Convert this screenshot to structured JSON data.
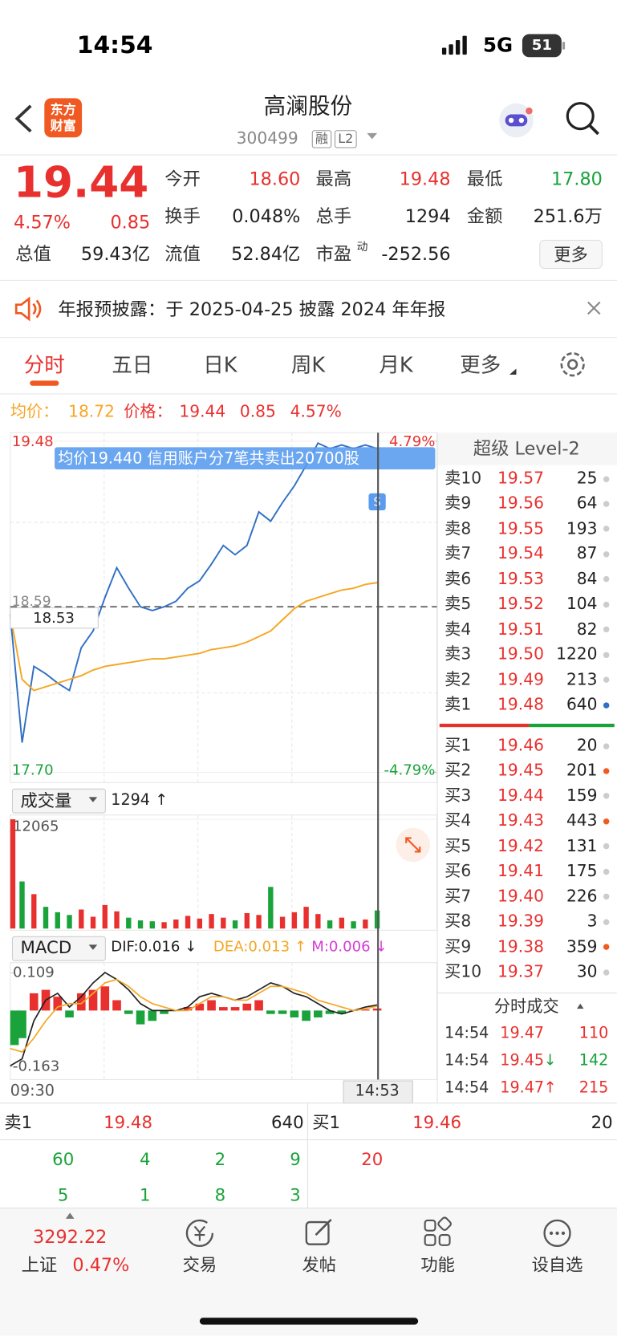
{
  "status_bar": {
    "time": "14:54",
    "network": "5G",
    "battery": "51"
  },
  "header": {
    "logo": [
      "东方",
      "财富"
    ],
    "title": "高澜股份",
    "code": "300499",
    "badges": [
      "融",
      "L2"
    ]
  },
  "quote": {
    "price": "19.44",
    "change_pct": "4.57%",
    "change": "0.85",
    "fields": [
      {
        "label": "今开",
        "value": "18.60",
        "color": "#e8312f"
      },
      {
        "label": "最高",
        "value": "19.48",
        "color": "#e8312f"
      },
      {
        "label": "最低",
        "value": "17.80",
        "color": "#1aa33a"
      },
      {
        "label": "换手",
        "value": "0.048%",
        "color": "#222222"
      },
      {
        "label": "总手",
        "value": "1294",
        "color": "#222222"
      },
      {
        "label": "金额",
        "value": "251.6万",
        "color": "#222222"
      },
      {
        "label": "总值",
        "value": "59.43亿",
        "color": "#222222"
      },
      {
        "label": "流值",
        "value": "52.84亿",
        "color": "#222222"
      },
      {
        "label": "市盈",
        "sup": "动",
        "value": "-252.56",
        "color": "#222222"
      }
    ],
    "more_button": "更多"
  },
  "notice": "年报预披露：于 2025-04-25 披露 2024 年年报",
  "tabs": [
    "分时",
    "五日",
    "日K",
    "周K",
    "月K",
    "更多"
  ],
  "price_chart": {
    "type": "line",
    "info": {
      "avg_label": "均价：",
      "avg": "18.72",
      "price_label": "价格：",
      "price": "19.44",
      "change": "0.85",
      "change_pct": "4.57%"
    },
    "ylim": [
      17.7,
      19.48
    ],
    "yticks": [
      {
        "value": 19.48,
        "label": "19.48"
      },
      {
        "value": 17.7,
        "label": "17.70"
      }
    ],
    "y2lim": [
      -4.79,
      4.79
    ],
    "y2ticks": [
      {
        "value": 4.79,
        "label": "4.79%"
      },
      {
        "value": -4.79,
        "label": "-4.79%"
      }
    ],
    "prev_close": {
      "value": 18.59,
      "label": "18.59"
    },
    "crosshair": {
      "value": 18.53,
      "label": "18.53",
      "time": "14:53"
    },
    "tooltip": "均价19.440  信用账户分7笔共卖出20700股",
    "marker": "S",
    "x_start_label": "09:30",
    "series": [
      {
        "color": "#2f6fc4",
        "values": [
          18.55,
          17.86,
          18.27,
          18.23,
          18.18,
          18.14,
          18.37,
          18.46,
          18.64,
          18.8,
          18.69,
          18.59,
          18.57,
          18.59,
          18.62,
          18.69,
          18.73,
          18.82,
          18.92,
          18.87,
          18.92,
          19.1,
          19.05,
          19.15,
          19.24,
          19.35,
          19.47,
          19.44,
          19.46,
          19.44,
          19.46,
          19.44
        ]
      },
      {
        "color": "#f5a623",
        "values": [
          18.55,
          18.2,
          18.14,
          18.16,
          18.18,
          18.2,
          18.22,
          18.25,
          18.27,
          18.28,
          18.29,
          18.3,
          18.31,
          18.31,
          18.32,
          18.33,
          18.34,
          18.36,
          18.37,
          18.38,
          18.4,
          18.43,
          18.46,
          18.52,
          18.58,
          18.62,
          18.64,
          18.66,
          18.68,
          18.69,
          18.71,
          18.72
        ]
      }
    ]
  },
  "volume_chart": {
    "type": "bar",
    "selector": "成交量",
    "current": "1294 ↑",
    "ylim": [
      0,
      12065
    ],
    "yticks": [
      12065
    ],
    "up_color": "#e8312f",
    "down_color": "#1aa33a",
    "values": [
      12065,
      5200,
      3800,
      2400,
      1800,
      1500,
      2100,
      1300,
      2600,
      1900,
      1200,
      900,
      800,
      700,
      1000,
      1400,
      1100,
      1600,
      1200,
      900,
      1700,
      1500,
      4600,
      1300,
      1800,
      2400,
      1600,
      900,
      1200,
      800,
      1000,
      2000
    ]
  },
  "macd_chart": {
    "type": "macd",
    "selector": "MACD",
    "indicators": [
      {
        "label": "DIF:0.016 ↓",
        "color": "#222222"
      },
      {
        "label": "DEA:0.013 ↑",
        "color": "#f5a623"
      },
      {
        "label": "M:0.006 ↓",
        "color": "#d63bd6"
      }
    ],
    "ylim": [
      -0.163,
      0.109
    ],
    "yticks": [
      0.109,
      -0.163
    ],
    "histogram": {
      "up_color": "#e8312f",
      "down_color": "#1aa33a",
      "values": [
        -0.1,
        -0.08,
        0.05,
        0.06,
        0.04,
        -0.02,
        0.05,
        0.06,
        0.07,
        0.03,
        -0.01,
        -0.04,
        -0.03,
        -0.01,
        0.0,
        0.01,
        0.02,
        0.03,
        0.01,
        0.01,
        0.02,
        0.03,
        -0.01,
        -0.01,
        -0.02,
        -0.03,
        -0.02,
        -0.01,
        -0.01,
        0.0,
        0.003,
        0.006
      ]
    },
    "series": [
      {
        "color": "#222222",
        "values": [
          -0.16,
          -0.14,
          -0.03,
          0.03,
          0.05,
          0.01,
          0.04,
          0.08,
          0.11,
          0.09,
          0.06,
          0.02,
          0.0,
          0.0,
          0.0,
          0.01,
          0.04,
          0.05,
          0.04,
          0.03,
          0.04,
          0.06,
          0.08,
          0.07,
          0.05,
          0.04,
          0.02,
          0.0,
          -0.01,
          0.0,
          0.01,
          0.016
        ]
      },
      {
        "color": "#f5a623",
        "values": [
          -0.11,
          -0.12,
          -0.08,
          -0.03,
          0.01,
          0.02,
          0.02,
          0.05,
          0.08,
          0.09,
          0.07,
          0.04,
          0.02,
          0.01,
          0.0,
          0.0,
          0.02,
          0.04,
          0.04,
          0.03,
          0.03,
          0.05,
          0.07,
          0.07,
          0.06,
          0.05,
          0.03,
          0.02,
          0.01,
          0.0,
          0.005,
          0.013
        ]
      }
    ]
  },
  "order_book": {
    "title": "超级 Level-2",
    "asks": [
      {
        "label": "卖10",
        "price": "19.57",
        "volume": "25",
        "dot": "#cccccc"
      },
      {
        "label": "卖9",
        "price": "19.56",
        "volume": "64",
        "dot": "#cccccc"
      },
      {
        "label": "卖8",
        "price": "19.55",
        "volume": "193",
        "dot": "#cccccc"
      },
      {
        "label": "卖7",
        "price": "19.54",
        "volume": "87",
        "dot": "#cccccc"
      },
      {
        "label": "卖6",
        "price": "19.53",
        "volume": "84",
        "dot": "#cccccc"
      },
      {
        "label": "卖5",
        "price": "19.52",
        "volume": "104",
        "dot": "#cccccc"
      },
      {
        "label": "卖4",
        "price": "19.51",
        "volume": "82",
        "dot": "#cccccc"
      },
      {
        "label": "卖3",
        "price": "19.50",
        "volume": "1220",
        "dot": "#cccccc"
      },
      {
        "label": "卖2",
        "price": "19.49",
        "volume": "213",
        "dot": "#cccccc"
      },
      {
        "label": "卖1",
        "price": "19.48",
        "volume": "640",
        "dot": "#2f6fc4"
      }
    ],
    "bids": [
      {
        "label": "买1",
        "price": "19.46",
        "volume": "20",
        "dot": "#cccccc"
      },
      {
        "label": "买2",
        "price": "19.45",
        "volume": "201",
        "dot": "#f05a22"
      },
      {
        "label": "买3",
        "price": "19.44",
        "volume": "159",
        "dot": "#cccccc"
      },
      {
        "label": "买4",
        "price": "19.43",
        "volume": "443",
        "dot": "#f05a22"
      },
      {
        "label": "买5",
        "price": "19.42",
        "volume": "131",
        "dot": "#cccccc"
      },
      {
        "label": "买6",
        "price": "19.41",
        "volume": "175",
        "dot": "#cccccc"
      },
      {
        "label": "买7",
        "price": "19.40",
        "volume": "226",
        "dot": "#cccccc"
      },
      {
        "label": "买8",
        "price": "19.39",
        "volume": "3",
        "dot": "#cccccc"
      },
      {
        "label": "买9",
        "price": "19.38",
        "volume": "359",
        "dot": "#f05a22"
      },
      {
        "label": "买10",
        "price": "19.37",
        "volume": "30",
        "dot": "#cccccc"
      }
    ]
  },
  "trades": {
    "title": "分时成交",
    "rows": [
      {
        "time": "14:54",
        "price": "19.47",
        "volume": "110",
        "volume_color": "#e8312f"
      },
      {
        "time": "14:54",
        "price": "19.45",
        "arrow": "↓",
        "arrow_color": "#1aa33a",
        "volume": "142",
        "volume_color": "#1aa33a"
      },
      {
        "time": "14:54",
        "price": "19.47",
        "arrow": "↑",
        "arrow_color": "#e8312f",
        "volume": "215",
        "volume_color": "#e8312f"
      }
    ]
  },
  "summary": {
    "sell": {
      "label": "卖1",
      "price": "19.48",
      "volume": "640"
    },
    "buy": {
      "label": "买1",
      "price": "19.46",
      "volume": "20"
    },
    "sell_queue": [
      "60",
      "4",
      "2",
      "9",
      "5",
      "1",
      "8",
      "3"
    ],
    "buy_queue": [
      "20"
    ]
  },
  "bottom_nav": {
    "index_value": "3292.22",
    "index_name": "上证",
    "index_change": "0.47%",
    "items": [
      "交易",
      "发帖",
      "功能",
      "设自选"
    ]
  }
}
